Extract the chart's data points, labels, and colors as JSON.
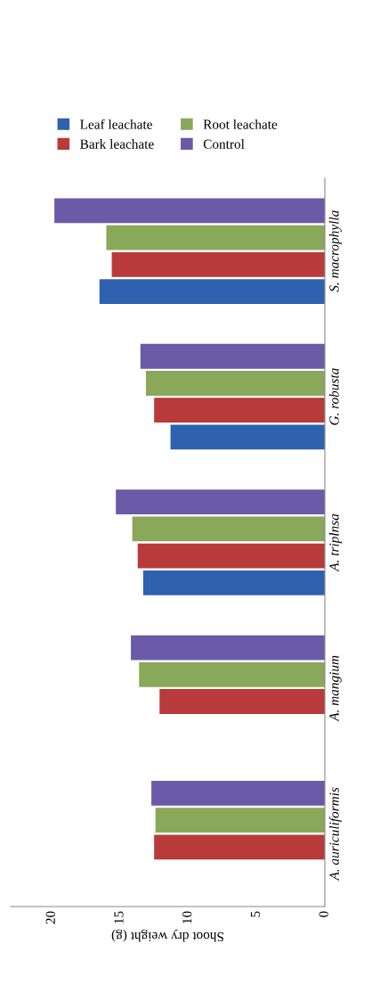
{
  "chart_data": {
    "type": "bar",
    "orientation": "horizontal",
    "xlabel": "Shoot dry weight (g)",
    "categories": [
      "S. macrophylla",
      "G. robusta",
      "A. triplnsa",
      "A. mangium",
      "A. auriculiformis"
    ],
    "series": [
      {
        "name": "Leaf leachate",
        "color": "#2e62b0",
        "values": [
          16.5,
          11.3,
          13.3,
          null,
          null
        ]
      },
      {
        "name": "Bark leachate",
        "color": "#b83a3a",
        "values": [
          15.6,
          12.5,
          13.7,
          12.1,
          12.5
        ]
      },
      {
        "name": "Root leachate",
        "color": "#8aa85a",
        "values": [
          16.0,
          13.1,
          14.1,
          13.6,
          12.4
        ]
      },
      {
        "name": "Control",
        "color": "#6a5aa8",
        "values": [
          19.8,
          13.5,
          15.3,
          14.2,
          12.7
        ]
      }
    ],
    "xlim": [
      23,
      0
    ],
    "xticks": [
      0,
      5,
      10,
      15,
      20
    ],
    "grid": false,
    "legend": "top"
  }
}
